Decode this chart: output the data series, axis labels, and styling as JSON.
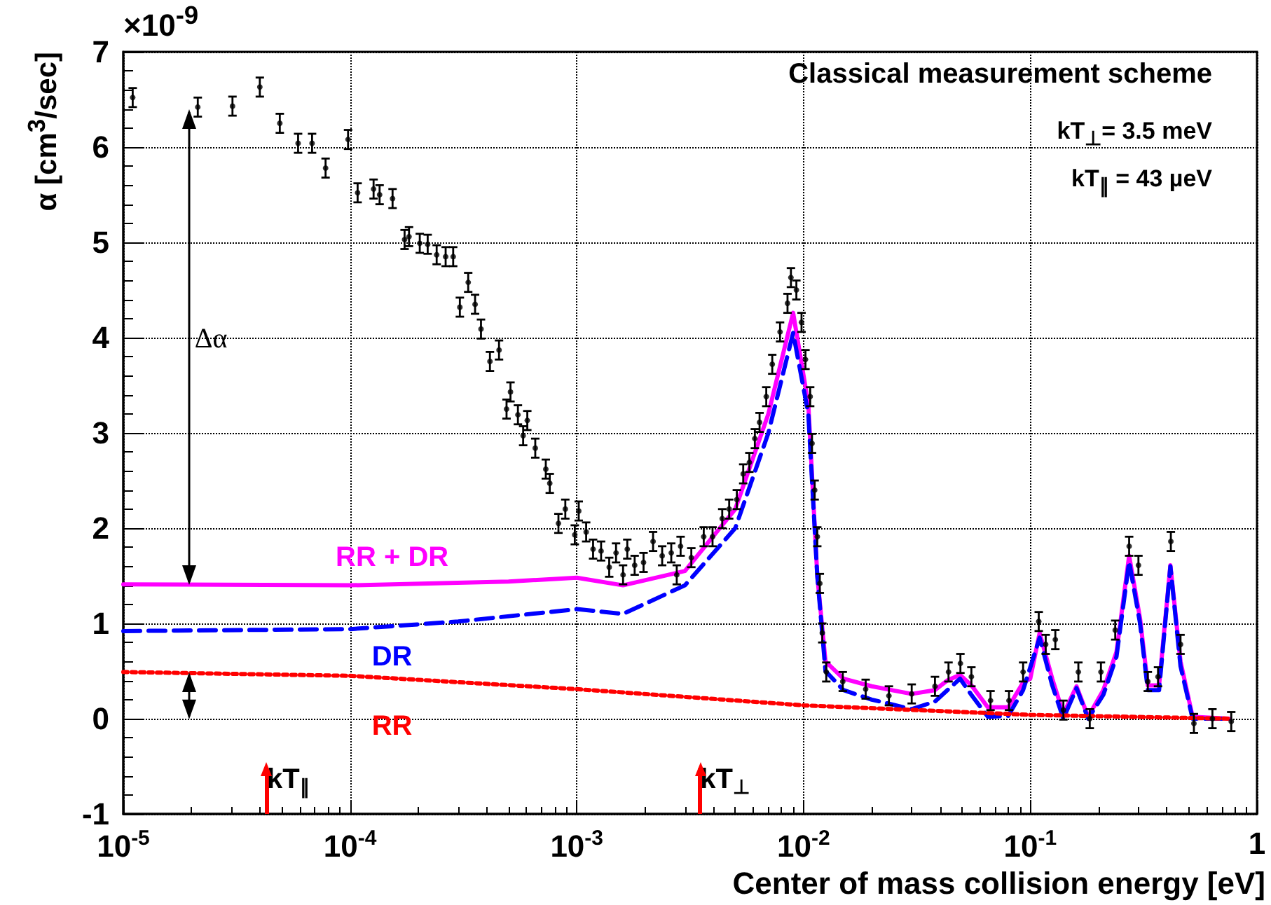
{
  "chart_data": {
    "type": "scatter",
    "xlabel": "Center of mass collision energy [eV]",
    "ylabel": "α [cm$^{3}$/sec]",
    "annotations": [
      "×10$^{-9}$",
      "Classical measurement scheme",
      "kT$_{⊥}$= 3.5 meV",
      "kT$_{∥}$ = 43 µeV",
      "Δα"
    ],
    "ref_lines": [
      {
        "axis": "x",
        "value": 4.3e-05,
        "label": "kT$_{∥}$",
        "color": "#ff0000"
      },
      {
        "axis": "x",
        "value": 0.0035,
        "label": "kT$_{⊥}$",
        "color": "#ff0000"
      }
    ],
    "log": "x",
    "xlim": [
      1e-05,
      1
    ],
    "xticks": [
      {
        "value": 1e-05,
        "label": "10$^{-5}$"
      },
      {
        "value": 0.0001,
        "label": "10$^{-4}$"
      },
      {
        "value": 0.001,
        "label": "10$^{-3}$"
      },
      {
        "value": 0.01,
        "label": "10$^{-2}$"
      },
      {
        "value": 0.1,
        "label": "10$^{-1}$"
      },
      1
    ],
    "ylim": [
      -1,
      7
    ],
    "yticks": [
      -1,
      0,
      1,
      2,
      3,
      4,
      5,
      6,
      7
    ],
    "grid": true,
    "legend": false,
    "series": [
      {
        "color": "#000000",
        "marker": "circle",
        "x": [
          1.1e-05,
          2.13e-05,
          3.03e-05,
          4e-05,
          4.9e-05,
          5.9e-05,
          6.8e-05,
          7.8e-05,
          9.8e-05,
          0.000108,
          0.000127,
          0.000135,
          0.000154,
          0.000174,
          0.000182,
          0.000203,
          0.00022,
          0.000241,
          0.000264,
          0.000285,
          0.000305,
          0.000332,
          0.000356,
          0.000378,
          0.000414,
          0.000454,
          0.00049,
          0.00051,
          0.00055,
          0.00058,
          0.000605,
          0.000656,
          0.00073,
          0.00076,
          0.00083,
          0.00089,
          0.00098,
          0.00102,
          0.0011,
          0.00118,
          0.00128,
          0.00139,
          0.00149,
          0.0016,
          0.00167,
          0.0018,
          0.00197,
          0.00217,
          0.00238,
          0.00261,
          0.00276,
          0.00287,
          0.0032,
          0.00363,
          0.00397,
          0.00438,
          0.0047,
          0.00508,
          0.00542,
          0.00577,
          0.0061,
          0.0064,
          0.00685,
          0.00728,
          0.00788,
          0.0085,
          0.0088,
          0.0093,
          0.0098,
          0.0102,
          0.0107,
          0.0109,
          0.0112,
          0.0115,
          0.0118,
          0.0121,
          0.0126,
          0.0149,
          0.0188,
          0.0238,
          0.03,
          0.038,
          0.0436,
          0.0492,
          0.055,
          0.0668,
          0.0806,
          0.093,
          0.109,
          0.117,
          0.129,
          0.14,
          0.163,
          0.183,
          0.205,
          0.237,
          0.273,
          0.3,
          0.33,
          0.366,
          0.417,
          0.46,
          0.527,
          0.636,
          0.77
        ],
        "values": [
          6.52,
          6.42,
          6.43,
          6.63,
          6.25,
          6.04,
          6.04,
          5.78,
          6.08,
          5.52,
          5.56,
          5.5,
          5.46,
          5.03,
          5.06,
          4.99,
          4.98,
          4.87,
          4.85,
          4.85,
          4.32,
          4.58,
          4.35,
          4.09,
          3.75,
          3.87,
          3.25,
          3.43,
          3.19,
          2.97,
          3.13,
          2.84,
          2.62,
          2.47,
          2.05,
          2.2,
          1.93,
          2.18,
          1.96,
          1.78,
          1.76,
          1.59,
          1.74,
          1.51,
          1.78,
          1.61,
          1.64,
          1.86,
          1.71,
          1.74,
          1.51,
          1.81,
          1.69,
          1.91,
          1.91,
          2.1,
          2.2,
          2.3,
          2.57,
          2.69,
          2.94,
          3.11,
          3.38,
          3.72,
          4.06,
          4.36,
          4.63,
          4.5,
          4.16,
          3.77,
          3.38,
          2.89,
          2.4,
          1.91,
          1.42,
          0.9,
          0.49,
          0.39,
          0.31,
          0.24,
          0.26,
          0.34,
          0.49,
          0.58,
          0.44,
          0.19,
          0.19,
          0.49,
          1.02,
          0.78,
          0.83,
          0.09,
          0.49,
          0.0,
          0.49,
          0.93,
          1.81,
          1.61,
          0.39,
          0.44,
          1.86,
          0.78,
          -0.05,
          0.0,
          -0.03
        ],
        "errors": [
          0.1,
          0.1,
          0.1,
          0.1,
          0.1,
          0.1,
          0.1,
          0.1,
          0.1,
          0.1,
          0.1,
          0.1,
          0.1,
          0.1,
          0.1,
          0.1,
          0.1,
          0.1,
          0.1,
          0.1,
          0.1,
          0.1,
          0.1,
          0.1,
          0.1,
          0.1,
          0.1,
          0.1,
          0.1,
          0.1,
          0.1,
          0.1,
          0.1,
          0.1,
          0.1,
          0.1,
          0.1,
          0.1,
          0.1,
          0.1,
          0.1,
          0.1,
          0.1,
          0.1,
          0.1,
          0.1,
          0.1,
          0.1,
          0.1,
          0.1,
          0.1,
          0.1,
          0.1,
          0.1,
          0.1,
          0.1,
          0.1,
          0.1,
          0.1,
          0.1,
          0.1,
          0.1,
          0.1,
          0.1,
          0.1,
          0.1,
          0.1,
          0.1,
          0.1,
          0.1,
          0.1,
          0.1,
          0.1,
          0.1,
          0.1,
          0.1,
          0.1,
          0.1,
          0.1,
          0.1,
          0.1,
          0.1,
          0.1,
          0.1,
          0.1,
          0.1,
          0.1,
          0.1,
          0.1,
          0.1,
          0.1,
          0.1,
          0.1,
          0.1,
          0.1,
          0.1,
          0.1,
          0.1,
          0.1,
          0.1,
          0.1,
          0.1,
          0.1,
          0.1,
          0.1
        ]
      },
      {
        "type": "line",
        "name": "RR + DR",
        "color": "#ff00ff",
        "line_style": "solid",
        "marker": "none",
        "x": [
          1e-05,
          0.0001,
          0.0005,
          0.001,
          0.0016,
          0.003,
          0.005,
          0.007,
          0.009,
          0.0105,
          0.0115,
          0.0125,
          0.015,
          0.02,
          0.03,
          0.038,
          0.043,
          0.049,
          0.055,
          0.065,
          0.08,
          0.093,
          0.1,
          0.11,
          0.125,
          0.14,
          0.16,
          0.18,
          0.21,
          0.24,
          0.273,
          0.305,
          0.33,
          0.37,
          0.415,
          0.46,
          0.52,
          0.75
        ],
        "values": [
          1.41,
          1.4,
          1.44,
          1.48,
          1.4,
          1.55,
          2.2,
          3.2,
          4.26,
          3.3,
          1.5,
          0.6,
          0.42,
          0.34,
          0.26,
          0.3,
          0.4,
          0.46,
          0.35,
          0.12,
          0.12,
          0.38,
          0.42,
          0.9,
          0.42,
          0.05,
          0.34,
          0.02,
          0.3,
          0.7,
          1.71,
          1.05,
          0.35,
          0.35,
          1.61,
          0.6,
          0.02,
          0.0
        ]
      },
      {
        "type": "line",
        "name": "DR",
        "color": "#0000ff",
        "line_style": "dashed",
        "marker": "none",
        "x": [
          1e-05,
          0.0001,
          0.0003,
          0.001,
          0.0016,
          0.003,
          0.005,
          0.007,
          0.009,
          0.0105,
          0.0115,
          0.0125,
          0.015,
          0.02,
          0.03,
          0.038,
          0.049,
          0.055,
          0.065,
          0.08,
          0.093,
          0.11,
          0.125,
          0.14,
          0.16,
          0.18,
          0.21,
          0.24,
          0.273,
          0.305,
          0.33,
          0.37,
          0.415,
          0.46,
          0.52,
          0.75
        ],
        "values": [
          0.92,
          0.94,
          1.02,
          1.15,
          1.1,
          1.4,
          2.0,
          3.0,
          4.05,
          3.2,
          1.5,
          0.5,
          0.3,
          0.2,
          0.1,
          0.18,
          0.42,
          0.25,
          0.02,
          0.03,
          0.3,
          0.85,
          0.35,
          0.0,
          0.32,
          0.0,
          0.25,
          0.65,
          1.65,
          1.0,
          0.3,
          0.3,
          1.6,
          0.55,
          0.0,
          0.0
        ]
      },
      {
        "type": "line",
        "name": "RR",
        "color": "#ff0000",
        "line_style": "dotted",
        "marker": "none",
        "x": [
          1e-05,
          0.0001,
          0.001,
          0.01,
          0.1,
          0.75
        ],
        "values": [
          0.49,
          0.45,
          0.31,
          0.14,
          0.04,
          0.0
        ]
      }
    ]
  }
}
